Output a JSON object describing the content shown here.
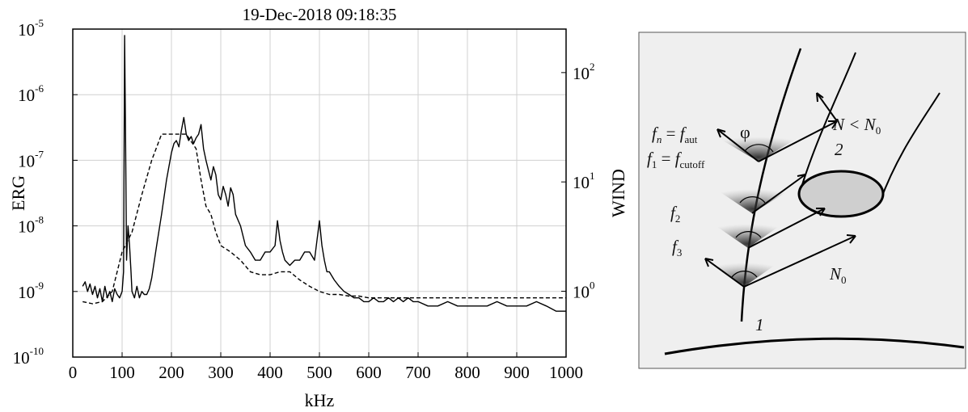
{
  "chart_data": {
    "type": "line",
    "title": "19-Dec-2018 09:18:35",
    "xlabel": "kHz",
    "ylabel_left": "ERG",
    "ylabel_right": "WIND",
    "xlim": [
      0,
      1000
    ],
    "ylim_left": [
      1e-10,
      1e-05
    ],
    "ylim_right": [
      0.25,
      250
    ],
    "y_scale": "log",
    "grid": true,
    "x_ticks": [
      "0",
      "100",
      "200",
      "300",
      "400",
      "500",
      "600",
      "700",
      "800",
      "900",
      "1000"
    ],
    "y_left_ticks": [
      {
        "base": "10",
        "exp": "-10"
      },
      {
        "base": "10",
        "exp": "-9"
      },
      {
        "base": "10",
        "exp": "-8"
      },
      {
        "base": "10",
        "exp": "-7"
      },
      {
        "base": "10",
        "exp": "-6"
      },
      {
        "base": "10",
        "exp": "-5"
      }
    ],
    "y_right_ticks": [
      {
        "base": "10",
        "exp": "0"
      },
      {
        "base": "10",
        "exp": "1"
      },
      {
        "base": "10",
        "exp": "2"
      }
    ],
    "series": [
      {
        "axis": "left",
        "style": "solid",
        "color": "#000000",
        "x": [
          20,
          25,
          30,
          35,
          40,
          45,
          50,
          55,
          60,
          65,
          70,
          75,
          80,
          85,
          90,
          95,
          100,
          103,
          105,
          107,
          109,
          112,
          115,
          118,
          120,
          125,
          130,
          135,
          140,
          145,
          150,
          155,
          160,
          170,
          180,
          190,
          200,
          205,
          210,
          215,
          220,
          225,
          230,
          235,
          240,
          245,
          250,
          255,
          260,
          265,
          270,
          275,
          280,
          285,
          290,
          295,
          300,
          305,
          310,
          315,
          320,
          325,
          330,
          340,
          350,
          360,
          370,
          380,
          390,
          400,
          410,
          415,
          420,
          425,
          430,
          440,
          450,
          460,
          470,
          480,
          490,
          500,
          505,
          510,
          515,
          520,
          530,
          540,
          550,
          560,
          570,
          580,
          590,
          600,
          610,
          620,
          630,
          640,
          650,
          660,
          670,
          680,
          690,
          700,
          720,
          740,
          760,
          780,
          800,
          820,
          840,
          860,
          880,
          900,
          920,
          940,
          960,
          980,
          1000
        ],
        "y": [
          1.2e-09,
          1.4e-09,
          1e-09,
          1.3e-09,
          9e-10,
          1.2e-09,
          8e-10,
          1.1e-09,
          7e-10,
          1.2e-09,
          8e-10,
          1e-09,
          7e-10,
          1.1e-09,
          9e-10,
          8e-10,
          1e-09,
          2e-09,
          8e-06,
          2e-07,
          3e-09,
          1e-08,
          5e-09,
          2e-09,
          1e-09,
          8e-10,
          1.2e-09,
          8e-10,
          1e-09,
          9e-10,
          9e-10,
          1.1e-09,
          1.6e-09,
          5e-09,
          1.5e-08,
          5e-08,
          1.3e-07,
          1.8e-07,
          2e-07,
          1.6e-07,
          2.8e-07,
          4.5e-07,
          2.5e-07,
          2e-07,
          2.3e-07,
          1.8e-07,
          2.2e-07,
          2.5e-07,
          3.5e-07,
          1.5e-07,
          1e-07,
          7e-08,
          5e-08,
          8e-08,
          6e-08,
          3e-08,
          2.5e-08,
          4e-08,
          3e-08,
          2e-08,
          3.8e-08,
          3e-08,
          1.5e-08,
          1e-08,
          5e-09,
          4e-09,
          3e-09,
          3e-09,
          4e-09,
          4e-09,
          5e-09,
          1.2e-08,
          6e-09,
          4e-09,
          3e-09,
          2.5e-09,
          3e-09,
          3e-09,
          4e-09,
          4e-09,
          3e-09,
          1.2e-08,
          5e-09,
          3e-09,
          2e-09,
          2e-09,
          1.5e-09,
          1.2e-09,
          1e-09,
          9e-10,
          8e-10,
          8e-10,
          7e-10,
          7e-10,
          8e-10,
          7e-10,
          7e-10,
          8e-10,
          7e-10,
          8e-10,
          7e-10,
          8e-10,
          7e-10,
          7e-10,
          6e-10,
          6e-10,
          7e-10,
          6e-10,
          6e-10,
          6e-10,
          6e-10,
          7e-10,
          6e-10,
          6e-10,
          6e-10,
          7e-10,
          6e-10,
          5e-10,
          5e-10
        ]
      },
      {
        "axis": "left",
        "style": "dashed",
        "color": "#000000",
        "x": [
          20,
          40,
          60,
          80,
          100,
          120,
          140,
          160,
          180,
          200,
          230,
          250,
          260,
          270,
          280,
          290,
          300,
          320,
          340,
          360,
          380,
          400,
          420,
          440,
          460,
          480,
          500,
          520,
          540,
          560,
          580,
          600,
          650,
          700,
          750,
          800,
          850,
          900,
          950,
          1000
        ],
        "y": [
          7e-10,
          6.5e-10,
          7e-10,
          1e-09,
          4e-09,
          8e-09,
          3e-08,
          1e-07,
          2.5e-07,
          2.5e-07,
          2.5e-07,
          1.5e-07,
          5e-08,
          2e-08,
          1.5e-08,
          8e-09,
          5e-09,
          4e-09,
          3e-09,
          2e-09,
          1.8e-09,
          1.8e-09,
          2e-09,
          2e-09,
          1.5e-09,
          1.2e-09,
          1e-09,
          9e-10,
          9e-10,
          8.5e-10,
          8.5e-10,
          8e-10,
          8e-10,
          8e-10,
          8e-10,
          8e-10,
          8e-10,
          8e-10,
          8e-10,
          8e-10
        ]
      }
    ]
  },
  "diagram": {
    "labels": {
      "fn": {
        "main": "f",
        "sub": "n",
        "eq": " = ",
        "rhs": "f",
        "rhs_sub": "aut"
      },
      "f1": {
        "main": "f",
        "sub": "1",
        "eq": " = ",
        "rhs": "f",
        "rhs_sub": "cutoff"
      },
      "f2": {
        "main": "f",
        "sub": "2"
      },
      "f3": {
        "main": "f",
        "sub": "3"
      },
      "phi": "φ",
      "n_less": {
        "a": "N < N",
        "sub": "0"
      },
      "n0": {
        "main": "N",
        "sub": "0"
      },
      "num1": "1",
      "num2": "2"
    }
  }
}
